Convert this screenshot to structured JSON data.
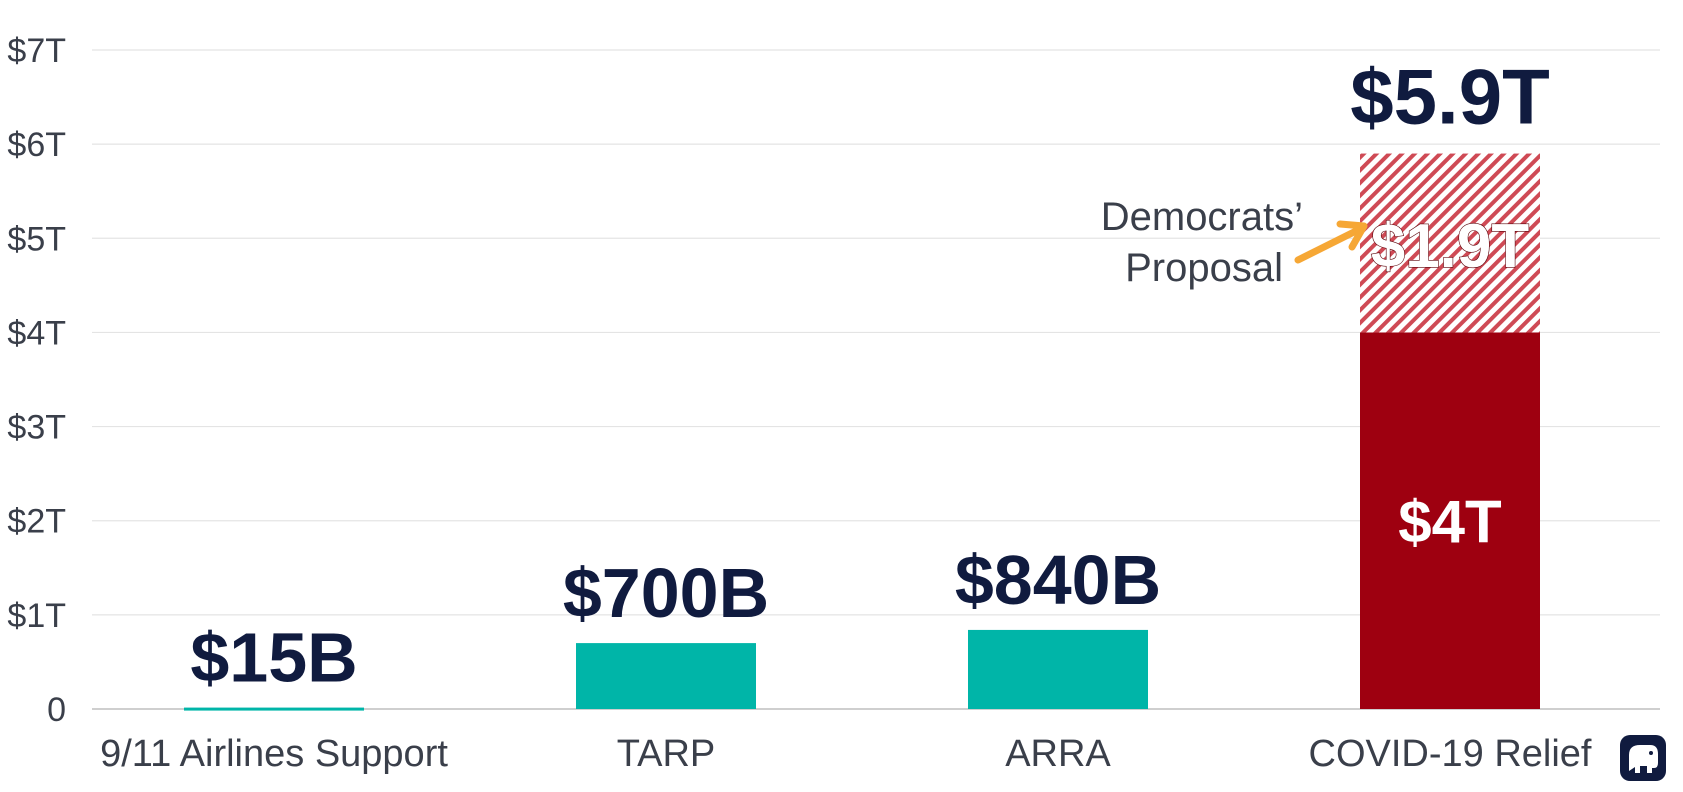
{
  "chart_data": {
    "type": "bar",
    "categories": [
      "9/11 Airlines Support",
      "TARP",
      "ARRA",
      "COVID-19 Relief"
    ],
    "series": [
      {
        "values": [
          0.015,
          0.7,
          0.84,
          4.0
        ],
        "value_labels": [
          "$15B",
          "$700B",
          "$840B",
          "$4T"
        ]
      },
      {
        "values": [
          0,
          0,
          0,
          1.9
        ],
        "value_labels": [
          "",
          "",
          "",
          "$1.9T"
        ]
      }
    ],
    "total_label": "$5.9T",
    "ylim": [
      0,
      7
    ],
    "yticks": [
      0,
      1,
      2,
      3,
      4,
      5,
      6,
      7
    ],
    "ytick_labels": [
      "0",
      "$1T",
      "$2T",
      "$3T",
      "$4T",
      "$5T",
      "$6T",
      "$7T"
    ],
    "annotation": {
      "line1": "Democrats’",
      "line2": "Proposal",
      "target_category": "COVID-19 Relief",
      "target_series": 1
    },
    "grid": true,
    "colors": {
      "bar": "#00b5a8",
      "relief": "#9e0010",
      "proposal_hatch": "#cf4a55",
      "label_text": "#101b3f",
      "arrow": "#f6a735",
      "grid": "#e4e4e4",
      "logo": "#101b3f"
    },
    "logo_icon": "elephant-icon"
  }
}
